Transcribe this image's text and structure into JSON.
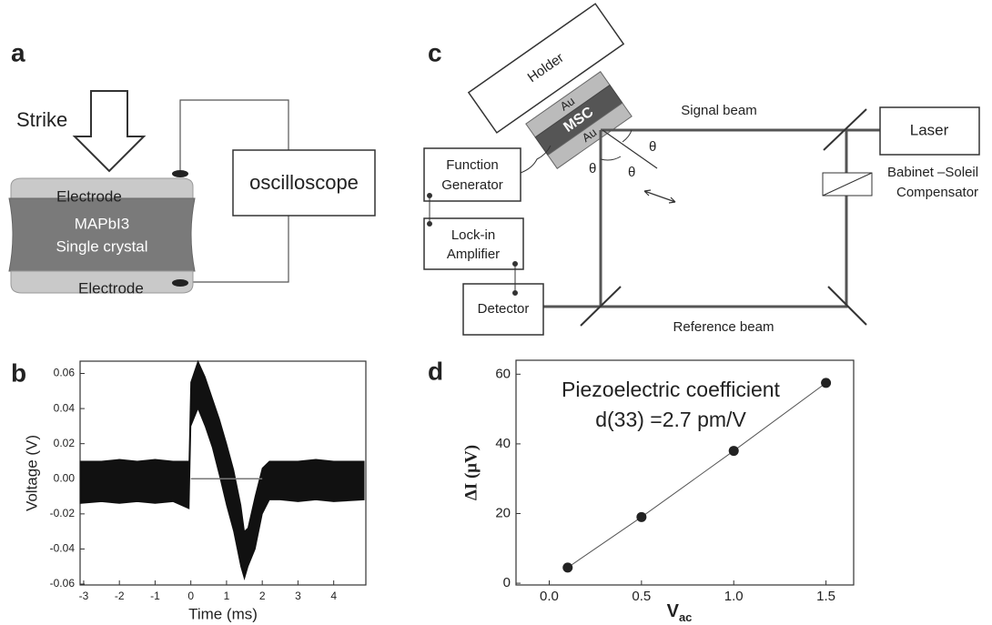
{
  "panel_a": {
    "label": "a",
    "strike": "Strike",
    "top_electrode": "Electrode",
    "crystal_line1": "MAPbI3",
    "crystal_line2": "Single crystal",
    "bottom_electrode": "Electrode",
    "oscilloscope": "oscilloscope"
  },
  "panel_c": {
    "label": "c",
    "holder": "Holder",
    "au_top": "Au",
    "msc": "MSC",
    "au_bottom": "Au",
    "signal_beam": "Signal beam",
    "laser": "Laser",
    "function_line1": "Function",
    "function_line2": "Generator",
    "lockin_line1": "Lock-in",
    "lockin_line2": "Amplifier",
    "detector": "Detector",
    "reference_beam": "Reference beam",
    "compensator_line1": "Babinet –Soleil",
    "compensator_line2": "Compensator",
    "theta1": "θ",
    "theta2": "θ",
    "theta3": "θ"
  },
  "chart_data": [
    {
      "type": "range",
      "panel_label": "b",
      "x_label": "Time (ms)",
      "y_label": "Voltage (V)",
      "color": "#111111",
      "x": [
        -3.1,
        -2.5,
        -2,
        -1.5,
        -1,
        -0.5,
        -0.05,
        0,
        0.2,
        0.4,
        0.6,
        0.8,
        1.0,
        1.2,
        1.4,
        1.5,
        1.6,
        1.8,
        2.0,
        2.2,
        2.5,
        3,
        3.5,
        4,
        4.85
      ],
      "upper": [
        0.01,
        0.01,
        0.011,
        0.01,
        0.011,
        0.01,
        0.01,
        0.055,
        0.067,
        0.058,
        0.046,
        0.034,
        0.02,
        0.005,
        -0.015,
        -0.03,
        -0.028,
        -0.01,
        0.006,
        0.01,
        0.01,
        0.01,
        0.011,
        0.01,
        0.01
      ],
      "lower": [
        -0.014,
        -0.013,
        -0.014,
        -0.013,
        -0.014,
        -0.013,
        -0.017,
        0.03,
        0.04,
        0.03,
        0.018,
        0.002,
        -0.015,
        -0.03,
        -0.05,
        -0.057,
        -0.05,
        -0.04,
        -0.02,
        -0.012,
        -0.012,
        -0.013,
        -0.012,
        -0.013,
        -0.012
      ],
      "xlim": [
        -3.1,
        4.9
      ],
      "xticks": [
        -3,
        -2,
        -1,
        0,
        1,
        2,
        3,
        4
      ],
      "ylim": [
        -0.0605,
        0.067
      ],
      "yticks": [
        -0.06,
        -0.04,
        -0.02,
        {
          "value": 0,
          "label": "0.00"
        },
        0.02,
        0.04,
        0.06
      ]
    },
    {
      "type": "scatter",
      "panel_label": "d",
      "x_label": "V",
      "x_label_subscript": "ac",
      "y_label": "ΔI (μV)",
      "color": "#222222",
      "line": true,
      "annotation": [
        "Piezoelectric coefficient",
        "d(33) =2.7 pm/V"
      ],
      "x": [
        0.1,
        0.5,
        1.0,
        1.5
      ],
      "values": [
        4.5,
        19,
        38,
        57.5
      ],
      "xlim": [
        -0.18,
        1.65
      ],
      "xticks": [
        {
          "value": 0,
          "label": "0.0"
        },
        0.5,
        {
          "value": 1,
          "label": "1.0"
        },
        1.5
      ],
      "ylim": [
        -0.5,
        64
      ],
      "yticks": [
        0,
        20,
        40,
        60
      ]
    }
  ]
}
